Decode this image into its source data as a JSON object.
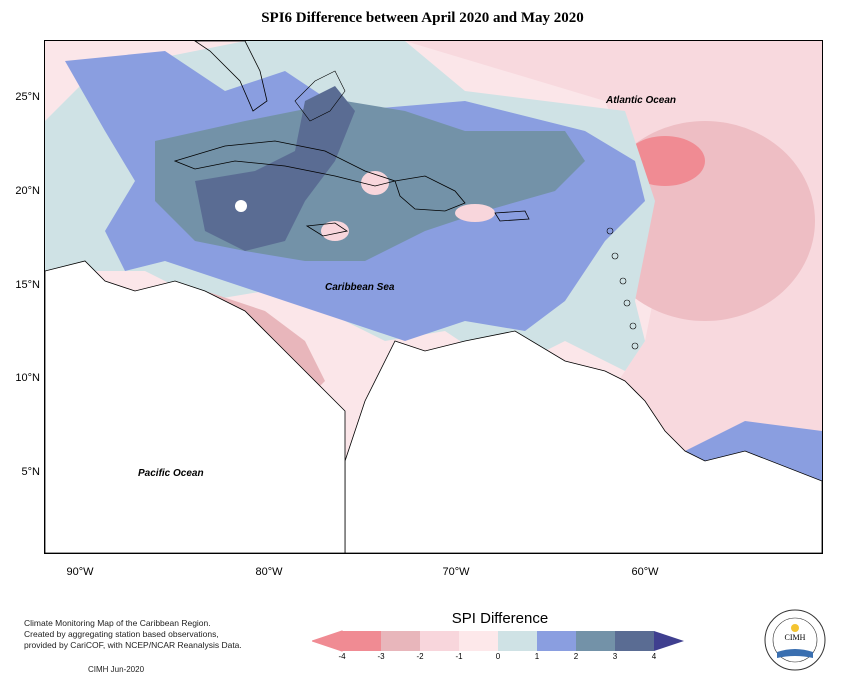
{
  "title": "SPI6 Difference between April 2020 and May 2020",
  "map": {
    "lat_labels": [
      "25°N",
      "20°N",
      "15°N",
      "10°N",
      "5°N"
    ],
    "lon_labels": [
      "90°W",
      "80°W",
      "70°W",
      "60°W"
    ],
    "places": {
      "atlantic": "Atlantic Ocean",
      "caribbean": "Caribbean Sea",
      "pacific": "Pacific Ocean"
    }
  },
  "legend": {
    "title": "SPI Difference",
    "ticks": [
      "-4",
      "-3",
      "-2",
      "-1",
      "0",
      "1",
      "2",
      "3",
      "4"
    ],
    "colors": [
      "#f08b93",
      "#e8b6bb",
      "#f8d6dc",
      "#fde8ea",
      "#cfe2e5",
      "#8a9ee0",
      "#7392a8",
      "#5a6c93"
    ]
  },
  "credits": {
    "line1": "Climate Monitoring Map of the Caribbean Region.",
    "line2": "Created by aggregating station based observations,",
    "line3": "provided by CariCOF, with NCEP/NCAR Reanalysis Data.",
    "date": "CIMH  Jun-2020"
  },
  "logo": {
    "text": "CIMH"
  }
}
